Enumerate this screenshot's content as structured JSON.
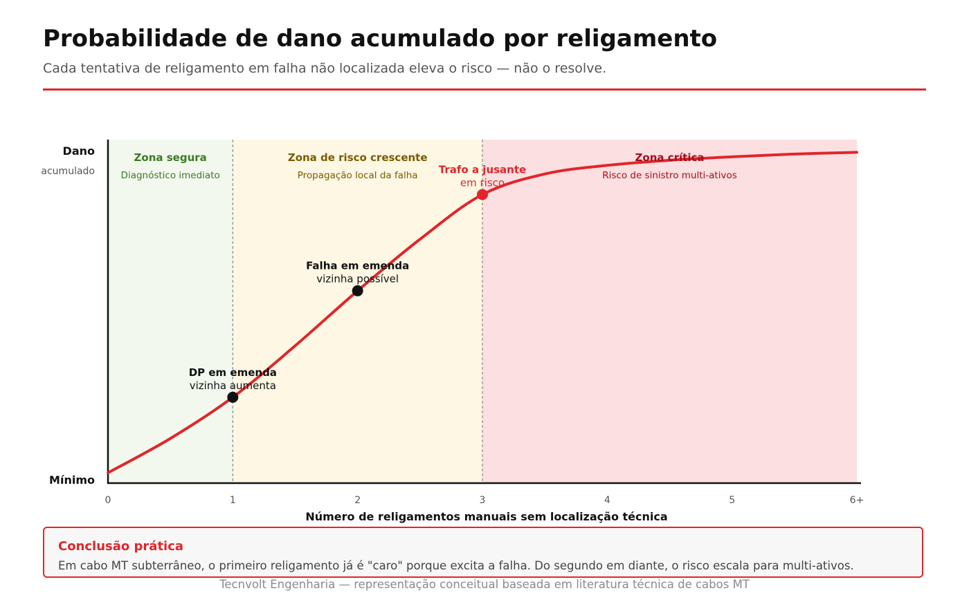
{
  "header": {
    "title": "Probabilidade de dano acumulado por religamento",
    "subtitle": "Cada tentativa de religamento em falha não localizada eleva o risco — não o resolve."
  },
  "colors": {
    "accent": "#e0262b",
    "zone_safe_bg": "#f2f8ee",
    "zone_safe_text": "#3b7a22",
    "zone_rising_bg": "#fdf7e3",
    "zone_rising_text": "#7a5c00",
    "zone_critical_bg": "#fcdfe0",
    "zone_critical_text": "#a50e1a"
  },
  "chart_data": {
    "type": "line",
    "xlabel": "Número de religamentos manuais sem localização técnica",
    "ylabel_top": "Dano",
    "ylabel_top_sub": "acumulado",
    "ylabel_bottom": "Mínimo",
    "xlim": [
      0,
      6
    ],
    "ylim": [
      0,
      100
    ],
    "x_ticks": [
      "0",
      "1",
      "2",
      "3",
      "4",
      "5",
      "6+"
    ],
    "series": [
      {
        "x": [
          0,
          0.5,
          1,
          1.5,
          2,
          2.5,
          3,
          3.5,
          4,
          4.5,
          5,
          5.5,
          6
        ],
        "y": [
          3,
          13,
          25,
          40,
          56,
          71,
          84,
          90,
          92.5,
          94,
          95,
          95.8,
          96.3
        ]
      }
    ],
    "zones": [
      {
        "from": 0,
        "to": 1,
        "title": "Zona segura",
        "subtitle": "Diagnóstico imediato",
        "style": "safe"
      },
      {
        "from": 1,
        "to": 3,
        "title": "Zona de risco crescente",
        "subtitle": "Propagação local da falha",
        "style": "rising"
      },
      {
        "from": 3,
        "to": 6,
        "title": "Zona crítica",
        "subtitle": "Risco de sinistro multi-ativos",
        "style": "critical"
      }
    ],
    "annotations": [
      {
        "x": 1,
        "y": 25,
        "line1": "DP em emenda",
        "line2": "vizinha aumenta",
        "style": "dark"
      },
      {
        "x": 2,
        "y": 56,
        "line1": "Falha em emenda",
        "line2": "vizinha possível",
        "style": "dark"
      },
      {
        "x": 3,
        "y": 84,
        "line1": "Trafo a jusante",
        "line2": "em risco",
        "style": "red"
      }
    ],
    "grid": false
  },
  "conclusion": {
    "title": "Conclusão prática",
    "text": "Em cabo MT subterrâneo, o primeiro religamento já é \"caro\" porque excita a falha. Do segundo em diante, o risco escala para multi-ativos."
  },
  "footer": "Tecnvolt Engenharia — representação conceitual baseada em literatura técnica de cabos MT"
}
